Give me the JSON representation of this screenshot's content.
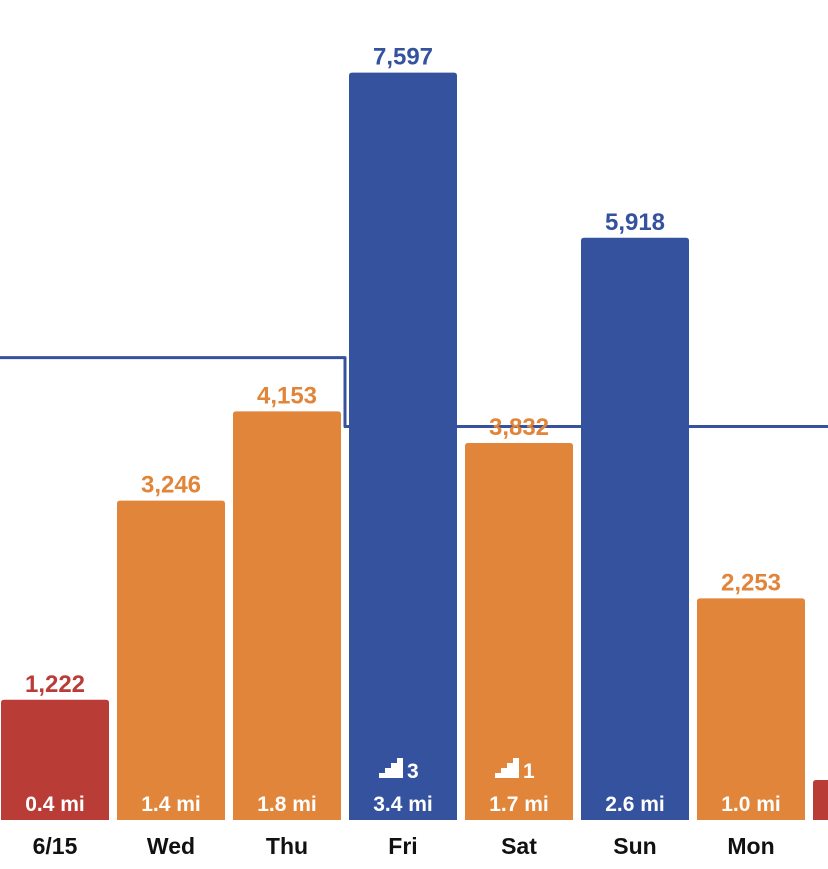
{
  "colors": {
    "below": "#b93c36",
    "mid": "#e0853a",
    "above": "#35529e",
    "goal_line": "#35529e",
    "axis_text": "#111111"
  },
  "chart_data": {
    "type": "bar",
    "categories": [
      "6/15",
      "Wed",
      "Thu",
      "Fri",
      "Sat",
      "Sun",
      "Mon"
    ],
    "values": [
      1222,
      3246,
      4153,
      7597,
      3832,
      5918,
      2253
    ],
    "value_labels": [
      "1,222",
      "3,246",
      "4,153",
      "7,597",
      "3,832",
      "5,918",
      "2,253"
    ],
    "distance_labels": [
      "0.4 mi",
      "1.4 mi",
      "1.8 mi",
      "3.4 mi",
      "1.7 mi",
      "2.6 mi",
      "1.0 mi"
    ],
    "status": [
      "below",
      "mid",
      "mid",
      "above",
      "mid",
      "above",
      "mid"
    ],
    "stairs": [
      {
        "index": 3,
        "icon": "stairs-icon",
        "count": "3"
      },
      {
        "index": 4,
        "icon": "stairs-icon",
        "count": "1"
      }
    ],
    "goal_line_values": [
      4700,
      4700,
      4700,
      4000,
      4000,
      4000,
      4000,
      4000
    ],
    "partial_next_bar": {
      "status": "below"
    },
    "ylim": [
      0,
      8050
    ],
    "title": "",
    "xlabel": "",
    "ylabel": "",
    "grid": false,
    "legend": "none"
  }
}
